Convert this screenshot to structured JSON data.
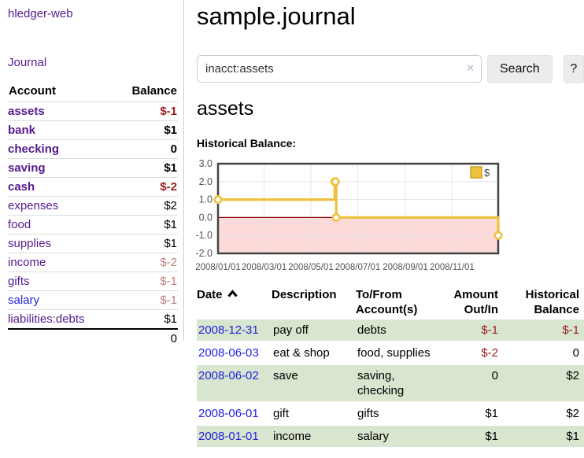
{
  "colors": {
    "link_purple": "#551a8b",
    "link_blue": "#2323dd",
    "negative_strong": "#9b1c1c",
    "negative_soft": "#bd7c7c",
    "row_green": "#d8e5cf",
    "series_yellow": "#edc240",
    "negative_region_pink": "#fcdada",
    "zero_line_red": "#8b0000"
  },
  "sidebar": {
    "brand": "hledger-web",
    "nav_journal": "Journal",
    "accounts": {
      "header_account": "Account",
      "header_balance": "Balance",
      "rows": [
        {
          "name": "assets",
          "depth": 1,
          "bold": true,
          "link": "purple",
          "balance": "$-1",
          "bal_class": "neg-strong"
        },
        {
          "name": "bank",
          "depth": 2,
          "bold": true,
          "link": "purple",
          "balance": "$1",
          "bal_class": ""
        },
        {
          "name": "checking",
          "depth": 3,
          "bold": true,
          "link": "purple",
          "balance": "0",
          "bal_class": ""
        },
        {
          "name": "saving",
          "depth": 3,
          "bold": true,
          "link": "purple",
          "balance": "$1",
          "bal_class": ""
        },
        {
          "name": "cash",
          "depth": 2,
          "bold": true,
          "link": "purple",
          "balance": "$-2",
          "bal_class": "neg-strong"
        },
        {
          "name": "expenses",
          "depth": 1,
          "bold": false,
          "link": "purple",
          "balance": "$2",
          "bal_class": ""
        },
        {
          "name": "food",
          "depth": 2,
          "bold": false,
          "link": "purple",
          "balance": "$1",
          "bal_class": ""
        },
        {
          "name": "supplies",
          "depth": 2,
          "bold": false,
          "link": "purple",
          "balance": "$1",
          "bal_class": ""
        },
        {
          "name": "income",
          "depth": 1,
          "bold": false,
          "link": "purple",
          "balance": "$-2",
          "bal_class": "neg-soft"
        },
        {
          "name": "gifts",
          "depth": 2,
          "bold": false,
          "link": "purple",
          "balance": "$-1",
          "bal_class": "neg-soft"
        },
        {
          "name": "salary",
          "depth": 2,
          "bold": false,
          "link": "blue",
          "balance": "$-1",
          "bal_class": "neg-soft"
        },
        {
          "name": "liabilities:debts",
          "depth": 1,
          "bold": false,
          "link": "purple",
          "balance": "$1",
          "bal_class": ""
        }
      ],
      "total": "0"
    }
  },
  "main": {
    "title": "sample.journal",
    "search": {
      "value": "inacct:assets",
      "clear_icon": "×",
      "search_button": "Search",
      "help_button": "?"
    },
    "account_heading": "assets",
    "section_label": "Historical Balance:"
  },
  "chart_data": {
    "type": "line",
    "step": true,
    "title": "Historical Balance of assets",
    "xlim": [
      "2008-01-01",
      "2008-12-31"
    ],
    "ylim": [
      -2,
      3
    ],
    "y_ticks": [
      "3.0",
      "2.0",
      "1.0",
      "0.0",
      "-1.0",
      "-2.0"
    ],
    "x_ticks": [
      {
        "date": "2008-01-01",
        "label": "2008/01/01"
      },
      {
        "date": "2008-03-01",
        "label": "2008/03/01"
      },
      {
        "date": "2008-05-01",
        "label": "2008/05/01"
      },
      {
        "date": "2008-07-01",
        "label": "2008/07/01"
      },
      {
        "date": "2008-09-01",
        "label": "2008/09/01"
      },
      {
        "date": "2008-11-01",
        "label": "2008/11/01"
      }
    ],
    "grid": true,
    "legend": {
      "label": "$",
      "position": "top-right"
    },
    "series": [
      {
        "name": "$",
        "color": "#edc240",
        "points": [
          {
            "x": "2008-01-01",
            "y": 1
          },
          {
            "x": "2008-06-01",
            "y": 2
          },
          {
            "x": "2008-06-02",
            "y": 2
          },
          {
            "x": "2008-06-03",
            "y": 0
          },
          {
            "x": "2008-12-31",
            "y": -1
          }
        ]
      }
    ],
    "negative_region": {
      "from": 0,
      "to": -2,
      "color": "#fcdada"
    },
    "zero_line_color": "#8b0000"
  },
  "register": {
    "headers": {
      "date": "Date",
      "description": "Description",
      "accounts": "To/From Account(s)",
      "amount": "Amount Out/In",
      "balance": "Historical Balance"
    },
    "sort_icon": "caret-up",
    "rows": [
      {
        "date": "2008-12-31",
        "description": "pay off",
        "accounts": "debts",
        "amount": "$-1",
        "amount_neg": true,
        "balance": "$-1",
        "balance_neg": true
      },
      {
        "date": "2008-06-03",
        "description": "eat & shop",
        "accounts": "food, supplies",
        "amount": "$-2",
        "amount_neg": true,
        "balance": "0",
        "balance_neg": false
      },
      {
        "date": "2008-06-02",
        "description": "save",
        "accounts": "saving, checking",
        "amount": "0",
        "amount_neg": false,
        "balance": "$2",
        "balance_neg": false
      },
      {
        "date": "2008-06-01",
        "description": "gift",
        "accounts": "gifts",
        "amount": "$1",
        "amount_neg": false,
        "balance": "$2",
        "balance_neg": false
      },
      {
        "date": "2008-01-01",
        "description": "income",
        "accounts": "salary",
        "amount": "$1",
        "amount_neg": false,
        "balance": "$1",
        "balance_neg": false
      }
    ]
  }
}
